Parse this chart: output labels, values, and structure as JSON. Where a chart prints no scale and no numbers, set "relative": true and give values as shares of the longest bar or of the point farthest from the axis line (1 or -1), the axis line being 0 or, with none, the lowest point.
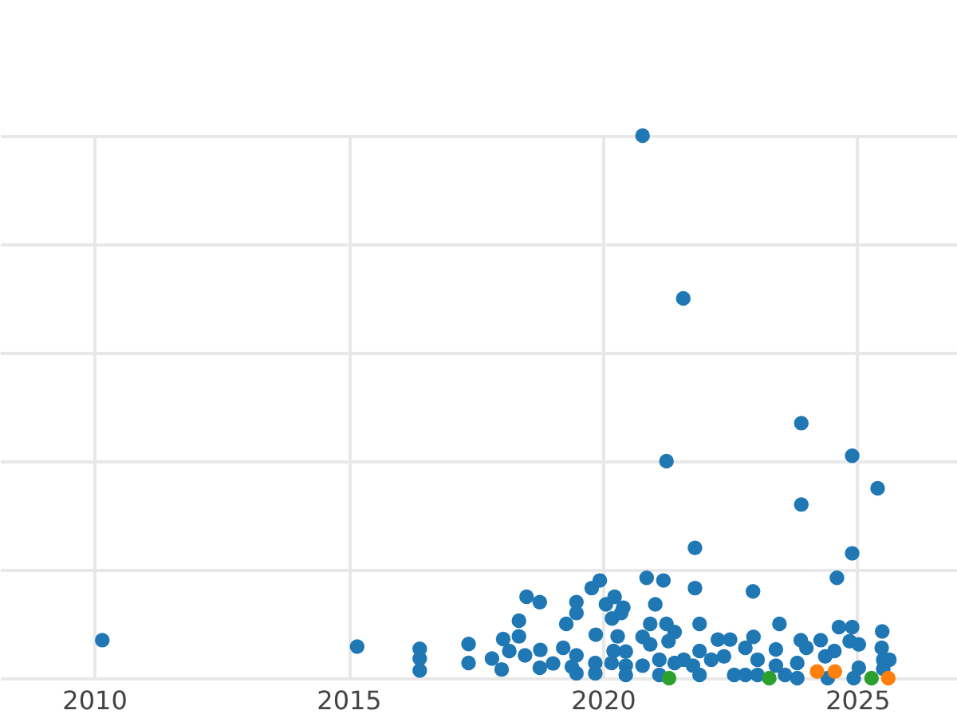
{
  "chart_data": {
    "type": "scatter",
    "relative": true,
    "grid": true,
    "marker": "circle",
    "xlim": [
      2008.15,
      2026.96
    ],
    "xticks": [
      2010,
      2015,
      2020,
      2025
    ],
    "series": [
      {
        "color": "#1f77b4",
        "x": [
          2020.78,
          2021.58,
          2023.9,
          2021.25,
          2024.9,
          2025.4,
          2023.9,
          2021.81,
          2024.9,
          2024.6,
          2020.86,
          2021.19,
          2019.94,
          2019.78,
          2021.81,
          2022.95,
          2018.5,
          2018.76,
          2019.48,
          2019.48,
          2020.23,
          2020.06,
          2020.4,
          2021.03,
          2020.18,
          2020.36,
          2018.35,
          2019.28,
          2023.47,
          2021.9,
          2024.64,
          2024.9,
          2025.49,
          2010.16,
          2015.17,
          2019.86,
          2016.4,
          2016.4,
          2016.4,
          2017.36,
          2017.36,
          2017.82,
          2018.01,
          2018.04,
          2018.35,
          2018.16,
          2018.47,
          2018.77,
          2018.76,
          2019.02,
          2019.22,
          2019.48,
          2019.39,
          2019.48,
          2019.85,
          2019.85,
          2020.29,
          2020.21,
          2020.45,
          2020.17,
          2020.45,
          2020.45,
          2020.78,
          2020.93,
          2021.25,
          2021.41,
          2020.93,
          2021.29,
          2020.78,
          2021.11,
          2021.41,
          2021.11,
          2021.59,
          2021.9,
          2021.9,
          2021.77,
          2022.13,
          2022.26,
          2022.5,
          2022.38,
          2022.58,
          2022.8,
          2022.96,
          2022.8,
          2023.04,
          2023.04,
          2023.4,
          2023.4,
          2023.58,
          2023.89,
          2024.0,
          2023.82,
          2023.82,
          2024.28,
          2024.37,
          2024.55,
          2024.42,
          2024.85,
          2025.03,
          2025.03,
          2024.93,
          2025.48,
          2025.51,
          2025.63,
          2025.51
        ],
        "values": [
          1.0,
          0.7,
          0.47,
          0.4,
          0.41,
          0.35,
          0.32,
          0.24,
          0.23,
          0.185,
          0.185,
          0.18,
          0.18,
          0.166,
          0.166,
          0.16,
          0.15,
          0.14,
          0.14,
          0.12,
          0.15,
          0.136,
          0.13,
          0.136,
          0.11,
          0.12,
          0.106,
          0.1,
          0.1,
          0.1,
          0.094,
          0.094,
          0.086,
          0.07,
          0.058,
          0.08,
          0.054,
          0.036,
          0.014,
          0.063,
          0.028,
          0.036,
          0.016,
          0.072,
          0.077,
          0.05,
          0.042,
          0.052,
          0.019,
          0.027,
          0.056,
          0.042,
          0.021,
          0.009,
          0.028,
          0.009,
          0.077,
          0.05,
          0.049,
          0.028,
          0.023,
          0.006,
          0.076,
          0.1,
          0.1,
          0.085,
          0.062,
          0.068,
          0.023,
          0.034,
          0.028,
          0.006,
          0.034,
          0.05,
          0.006,
          0.023,
          0.034,
          0.071,
          0.071,
          0.04,
          0.006,
          0.056,
          0.076,
          0.006,
          0.034,
          0.006,
          0.053,
          0.023,
          0.006,
          0.07,
          0.056,
          0.028,
          0.0,
          0.07,
          0.04,
          0.05,
          0.0,
          0.068,
          0.062,
          0.019,
          0.0,
          0.056,
          0.034,
          0.034,
          0.017
        ]
      },
      {
        "color": "#ff7f0e",
        "x": [
          2024.21,
          2024.56,
          2025.61
        ],
        "values": [
          0.012,
          0.012,
          0.0
        ]
      },
      {
        "color": "#2ca02c",
        "x": [
          2021.3,
          2023.27,
          2025.28
        ],
        "values": [
          0.0,
          0.0,
          0.0
        ]
      }
    ]
  }
}
